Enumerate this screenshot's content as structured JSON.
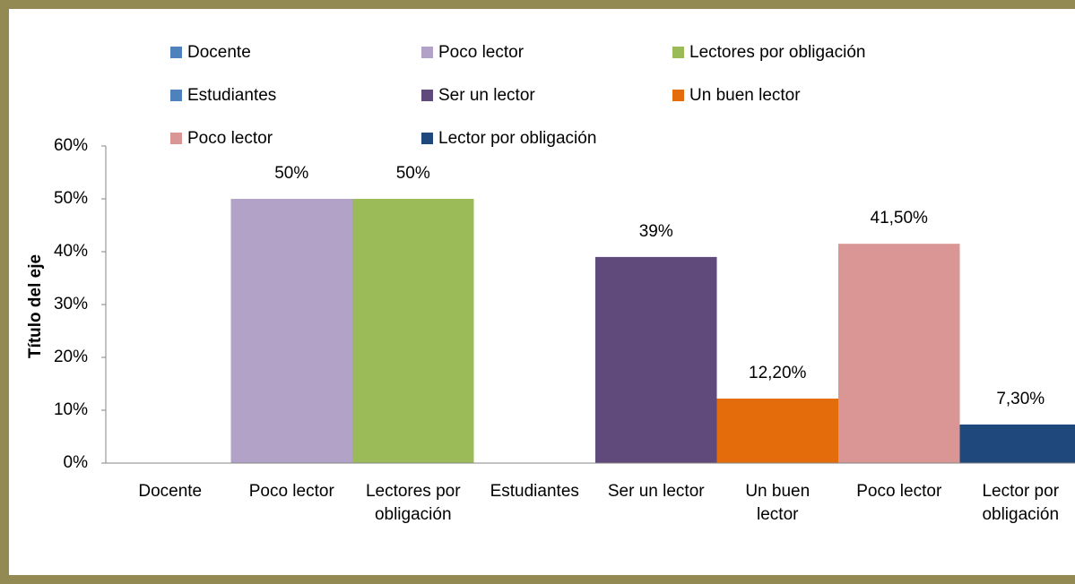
{
  "chart_data": {
    "type": "bar",
    "y_axis_title": "Título del eje",
    "categories": [
      "Docente",
      "Poco lector",
      "Lectores por obligación",
      "Estudiantes",
      "Ser un lector",
      "Un buen lector",
      "Poco lector",
      "Lector por obligación"
    ],
    "values": [
      null,
      50,
      50,
      null,
      39,
      12.2,
      41.5,
      7.3
    ],
    "value_labels": [
      null,
      "50%",
      "50%",
      null,
      "39%",
      "12,20%",
      "41,50%",
      "7,30%"
    ],
    "colors": [
      "#4f81bd",
      "#b3a2c7",
      "#9bbb59",
      "#4f81bd",
      "#604a7b",
      "#e46c0a",
      "#d99694",
      "#1f497d"
    ],
    "ylim": [
      0,
      60
    ],
    "yticks": [
      {
        "value": 0,
        "label": "0%"
      },
      {
        "value": 10,
        "label": "10%"
      },
      {
        "value": 20,
        "label": "20%"
      },
      {
        "value": 30,
        "label": "30%"
      },
      {
        "value": 40,
        "label": "40%"
      },
      {
        "value": 50,
        "label": "50%"
      },
      {
        "value": 60,
        "label": "60%"
      }
    ],
    "legend": "top"
  }
}
